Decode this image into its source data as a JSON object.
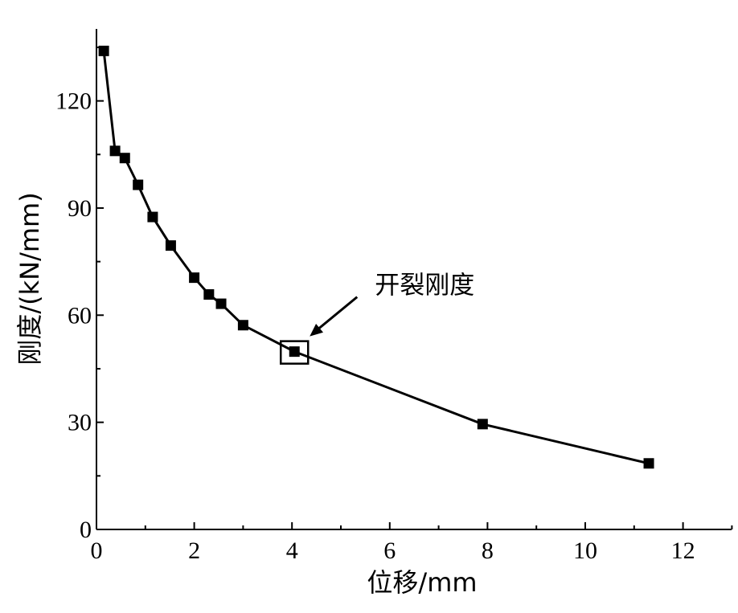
{
  "chart_data": {
    "type": "line",
    "xlabel": "位移/mm",
    "ylabel": "刚度/(kN/mm)",
    "xlim": [
      0,
      13
    ],
    "ylim": [
      0,
      140
    ],
    "xticks": [
      0,
      2,
      4,
      6,
      8,
      10,
      12
    ],
    "yticks": [
      0,
      30,
      60,
      90,
      120
    ],
    "grid": false,
    "series": [
      {
        "marker": "square",
        "x": [
          0.15,
          0.38,
          0.58,
          0.85,
          1.15,
          1.52,
          2.0,
          2.3,
          2.55,
          3.0,
          4.05,
          7.9,
          11.3
        ],
        "y": [
          134,
          106,
          104,
          96.5,
          87.5,
          79.5,
          70.5,
          65.8,
          63.2,
          57.2,
          49.8,
          29.5,
          18.5
        ]
      }
    ],
    "annotations": [
      {
        "text": "开裂刚度",
        "x": 4.05,
        "y": 49.8
      }
    ]
  }
}
